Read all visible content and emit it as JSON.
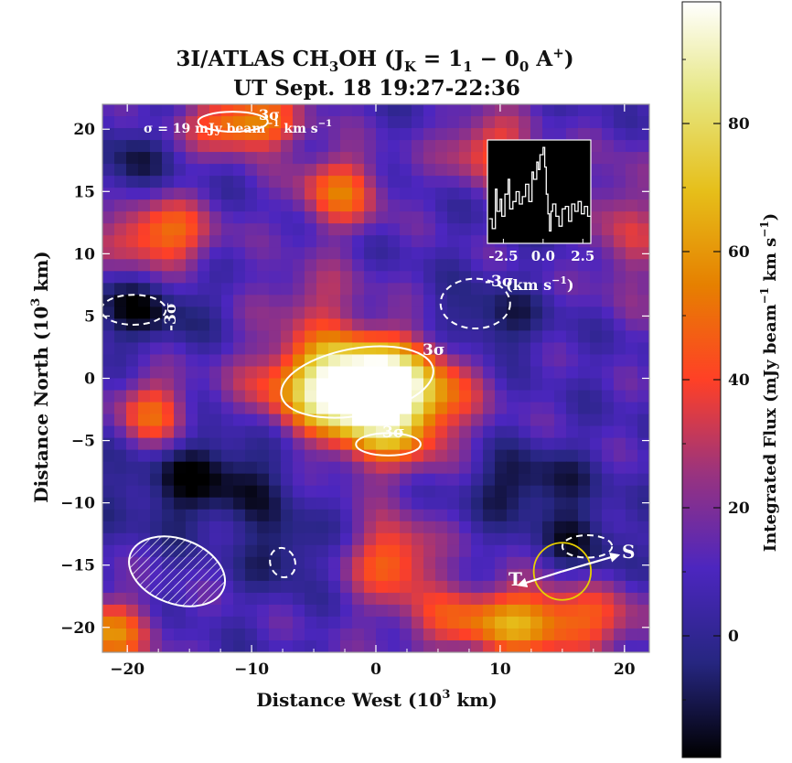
{
  "chart_data": {
    "type": "heatmap",
    "title": {
      "line1_pre": "3I/ATLAS CH",
      "line1_sub3": "3",
      "line1_mid": "OH (J",
      "line1_subK": "K",
      "line1_eq": " = 1",
      "line1_sub1": "1",
      "line1_minus": " − 0",
      "line1_sub0": "0",
      "line1_A": " A",
      "line1_sup": "+",
      "line1_close": ")",
      "line2": "UT Sept. 18 19:27-22:36"
    },
    "xlabel": {
      "pre": "Distance West (10",
      "sup": "3",
      "post": " km)"
    },
    "ylabel": {
      "pre": "Distance North (10",
      "sup": "3",
      "post": " km)"
    },
    "xlim": [
      -22,
      22
    ],
    "ylim": [
      -22,
      22
    ],
    "xticks": [
      -20,
      -10,
      0,
      10,
      20
    ],
    "yticks": [
      -20,
      -15,
      -10,
      -5,
      0,
      5,
      10,
      15,
      20
    ],
    "sigma_label": {
      "pre": "σ = 19 mJy beam",
      "sup1": "−1",
      "mid": " km s",
      "sup2": "−1"
    },
    "contour_label": "3σ",
    "neg_contour_label": "-3σ",
    "colorbar": {
      "label": {
        "pre": "Integrated Flux (mJy beam",
        "sup1": "−1",
        "mid": " km s",
        "sup2": "−1",
        "post": ")"
      },
      "range": [
        -19,
        99
      ],
      "ticks": [
        0,
        20,
        40,
        60,
        80
      ]
    },
    "sources": [
      {
        "x": -1.5,
        "y": -0.5,
        "amp": 105,
        "sx": 4.8,
        "sy": 2.6
      },
      {
        "x": 1.0,
        "y": -3.5,
        "amp": 45,
        "sx": 3.5,
        "sy": 3.0
      },
      {
        "x": -10.5,
        "y": 20.5,
        "amp": 55,
        "sx": 3.0,
        "sy": 1.6
      },
      {
        "x": -3.0,
        "y": 15.0,
        "amp": 40,
        "sx": 2.5,
        "sy": 2.2
      },
      {
        "x": -17.5,
        "y": 11.5,
        "amp": 45,
        "sx": 3.0,
        "sy": 2.0
      },
      {
        "x": -18.0,
        "y": -3.0,
        "amp": 40,
        "sx": 2.2,
        "sy": 2.2
      },
      {
        "x": 1.5,
        "y": -14.5,
        "amp": 42,
        "sx": 2.4,
        "sy": 2.2
      },
      {
        "x": 12.0,
        "y": -19.5,
        "amp": 55,
        "sx": 6.0,
        "sy": 2.0
      },
      {
        "x": -21.5,
        "y": -20.5,
        "amp": 45,
        "sx": 2.5,
        "sy": 2.0
      },
      {
        "x": 9.0,
        "y": 18.5,
        "amp": 35,
        "sx": 2.5,
        "sy": 2.0
      },
      {
        "x": -5.0,
        "y": 6.5,
        "amp": 20,
        "sx": 3.0,
        "sy": 2.0
      },
      {
        "x": -14.0,
        "y": -8.0,
        "amp": -25,
        "sx": 5.0,
        "sy": 3.0
      },
      {
        "x": 9.0,
        "y": 4.5,
        "amp": -20,
        "sx": 3.0,
        "sy": 2.0
      },
      {
        "x": -19.0,
        "y": 5.5,
        "amp": -22,
        "sx": 3.5,
        "sy": 2.0
      },
      {
        "x": 12.0,
        "y": -8.5,
        "amp": -22,
        "sx": 3.5,
        "sy": 2.0
      },
      {
        "x": -7.5,
        "y": -14.0,
        "amp": -18,
        "sx": 2.0,
        "sy": 2.0
      },
      {
        "x": 16.5,
        "y": -13.0,
        "amp": -18,
        "sx": 2.5,
        "sy": 2.0
      },
      {
        "x": -20.0,
        "y": 17.0,
        "amp": -18,
        "sx": 2.0,
        "sy": 2.0
      },
      {
        "x": 20.0,
        "y": 12.0,
        "amp": 25,
        "sx": 2.0,
        "sy": 4.0
      }
    ],
    "noise_amplitude": 9,
    "background": 8,
    "contours_3sigma": [
      {
        "cx": -1.5,
        "cy": -0.3,
        "rx": 6.2,
        "ry": 2.7,
        "angle": 10
      },
      {
        "cx": 1.0,
        "cy": -5.3,
        "rx": 2.6,
        "ry": 0.9,
        "angle": 0
      },
      {
        "cx": -11.5,
        "cy": 20.6,
        "rx": 2.8,
        "ry": 0.8,
        "angle": 0
      }
    ],
    "contours_neg3sigma": [
      {
        "cx": -19.5,
        "cy": 5.5,
        "rx": 2.6,
        "ry": 1.2,
        "angle": 0
      },
      {
        "cx": 8.0,
        "cy": 6.0,
        "rx": 2.8,
        "ry": 2.0,
        "angle": 0
      },
      {
        "cx": -7.5,
        "cy": -14.8,
        "rx": 1.0,
        "ry": 1.2,
        "angle": 20
      },
      {
        "cx": 17.0,
        "cy": -13.5,
        "rx": 2.0,
        "ry": 0.9,
        "angle": 0
      }
    ],
    "beam": {
      "cx": -16.0,
      "cy": -15.5,
      "rx": 4.0,
      "ry": 2.6,
      "angle": -20
    },
    "nucleus_circle": {
      "cx": 15.0,
      "cy": -15.5,
      "r": 2.3
    },
    "arrows": {
      "start": [
        15.0,
        -15.5
      ],
      "T_tip": [
        11.5,
        -16.6
      ],
      "S_tip": [
        19.5,
        -14.2
      ],
      "T_label": "T",
      "S_label": "S"
    },
    "inset_spectrum": {
      "type": "line",
      "xlabel": {
        "pre": "(km s",
        "sup": "−1",
        "post": ")"
      },
      "xlim": [
        -3.5,
        3.0
      ],
      "ylim": [
        -1.0,
        3.2
      ],
      "xticks": [
        "-2.5",
        "0.0",
        "2.5"
      ],
      "x": [
        -3.4,
        -3.2,
        -3.0,
        -2.9,
        -2.7,
        -2.6,
        -2.4,
        -2.2,
        -2.1,
        -1.9,
        -1.7,
        -1.5,
        -1.3,
        -1.1,
        -0.9,
        -0.7,
        -0.6,
        -0.4,
        -0.3,
        -0.2,
        0.0,
        0.1,
        0.2,
        0.3,
        0.4,
        0.5,
        0.6,
        0.8,
        1.0,
        1.2,
        1.4,
        1.6,
        1.8,
        2.0,
        2.2,
        2.4,
        2.6,
        2.8
      ],
      "y": [
        0.0,
        -0.4,
        1.2,
        0.3,
        0.8,
        0.1,
        1.0,
        1.6,
        0.4,
        0.7,
        1.1,
        0.6,
        0.9,
        1.4,
        0.7,
        1.9,
        1.6,
        2.3,
        2.0,
        2.6,
        2.9,
        2.1,
        1.0,
        0.2,
        -0.5,
        0.3,
        0.6,
        0.1,
        -0.3,
        0.4,
        0.5,
        -0.1,
        0.6,
        0.3,
        0.7,
        0.2,
        0.5,
        0.1
      ]
    }
  }
}
